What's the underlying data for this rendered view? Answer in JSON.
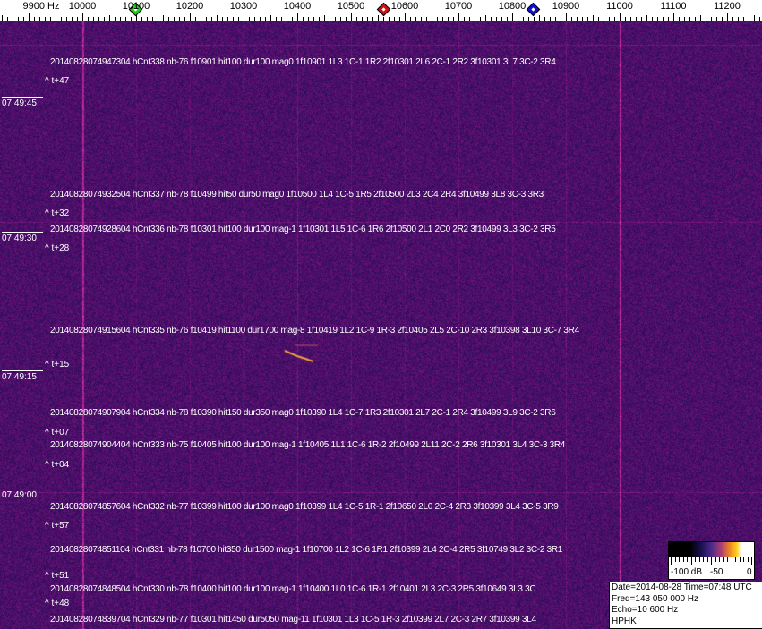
{
  "axis": {
    "unit_label": "9900 Hz",
    "labels": [
      "10000",
      "10100",
      "10200",
      "10300",
      "10400",
      "10500",
      "10600",
      "10700",
      "10800",
      "10900",
      "11000",
      "11100",
      "11200"
    ],
    "markers": [
      {
        "name": "green-marker",
        "freq_hz": 10098,
        "color": "#22cc22"
      },
      {
        "name": "red-marker",
        "freq_hz": 10560,
        "color": "#cc1111"
      },
      {
        "name": "blue-marker",
        "freq_hz": 10838,
        "color": "#1111cc"
      }
    ]
  },
  "detections": [
    {
      "text": "20140828074947304 hCnt338 nb-76 f10901 hit100 dur100 mag0 1f10901 1L3 1C-1 1R2 2f10301 2L6 2C-1 2R2 3f10301 3L7 3C-2 3R4",
      "rel": "^ t+47"
    },
    {
      "text": "20140828074932504 hCnt337 nb-78 f10499 hit50 dur50 mag0 1f10500 1L4 1C-5 1R5 2f10500 2L3 2C4 2R4 3f10499 3L8 3C-3 3R3",
      "rel": "^ t+32"
    },
    {
      "text": "20140828074928604 hCnt336 nb-78 f10301 hit100 dur100 mag-1 1f10301 1L5 1C-6 1R6 2f10500 2L1 2C0 2R2 3f10499 3L3 3C-2 3R5",
      "rel": "^ t+28"
    },
    {
      "text": "20140828074915604 hCnt335 nb-76 f10419 hit1100 dur1700 mag-8 1f10419 1L2 1C-9 1R-3 2f10405 2L5 2C-10 2R3 3f10398 3L10 3C-7 3R4",
      "rel": "^ t+15"
    },
    {
      "text": "20140828074907904 hCnt334 nb-78 f10390 hit150 dur350 mag0 1f10390 1L4 1C-7 1R3 2f10301 2L7 2C-1 2R4 3f10499 3L9 3C-2 3R6",
      "rel": "^ t+07"
    },
    {
      "text": "20140828074904404 hCnt333 nb-75 f10405 hit100 dur100 mag-1 1f10405 1L1 1C-6 1R-2 2f10499 2L11 2C-2 2R6 3f10301 3L4 3C-3 3R4",
      "rel": "^ t+04"
    },
    {
      "text": "20140828074857604 hCnt332 nb-77 f10399 hit100 dur100 mag0 1f10399 1L4 1C-5 1R-1 2f10650 2L0 2C-4 2R3 3f10399 3L4 3C-5 3R9",
      "rel": "^ t+57"
    },
    {
      "text": "20140828074851104 hCnt331 nb-78 f10700 hit350 dur1500 mag-1 1f10700 1L2 1C-6 1R1 2f10399 2L4 2C-4 2R5 3f10749 3L2 3C-2 3R1",
      "rel": "^ t+51"
    },
    {
      "text": "20140828074848504 hCnt330 nb-78 f10400 hit100 dur100 mag-1 1f10400 1L0 1C-6 1R-1 2f10401 2L3 2C-3 2R5 3f10649 3L3 3C",
      "rel": "^ t+48"
    },
    {
      "text": "20140828074839704 hCnt329 nb-77 f10301 hit1450 dur5050 mag-11 1f10301 1L3 1C-5 1R-3 2f10399 2L7 2C-3 2R7 3f10399 3L4"
    }
  ],
  "clock": [
    "07:49:45",
    "07:49:30",
    "07:49:15",
    "07:49:00"
  ],
  "colorbar": {
    "labels": [
      "-100 dB",
      "-50",
      "0"
    ]
  },
  "info": {
    "date_line": "Date=2014-08-28 Time=07:48 UTC",
    "freq_line": "Freq=143 050 000 Hz",
    "echo_line": "Echo=10 600 Hz",
    "station": "HPHK"
  }
}
